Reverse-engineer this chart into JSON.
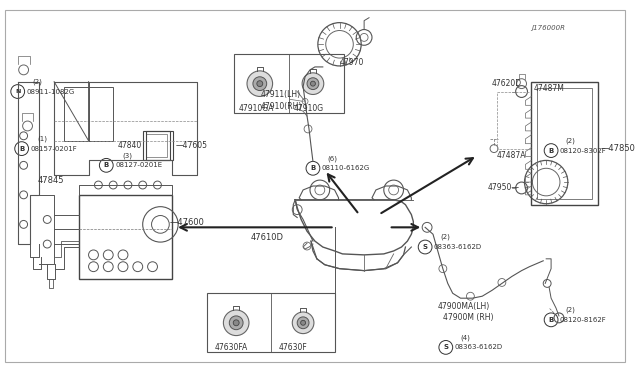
{
  "bg_color": "#ffffff",
  "lc": "#555555",
  "dc": "#333333",
  "fig_width": 6.4,
  "fig_height": 3.72,
  "dpi": 100,
  "border": [
    0.008,
    0.02,
    0.984,
    0.96
  ],
  "fs": 5.5,
  "fss": 4.8
}
